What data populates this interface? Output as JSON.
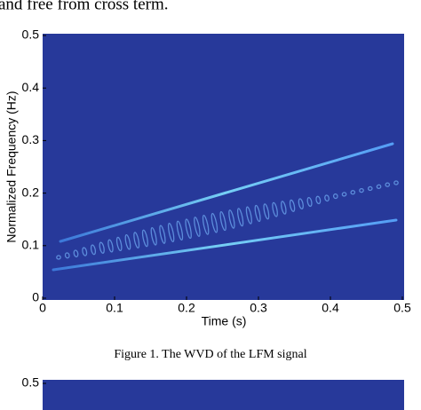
{
  "paragraph": "and free from cross term.",
  "chart_data": [
    {
      "type": "heatmap",
      "xlabel": "Time (s)",
      "ylabel": "Normalized Frequency (Hz)",
      "xlim": [
        0,
        0.5
      ],
      "ylim": [
        0,
        0.5
      ],
      "xticks": [
        0,
        0.1,
        0.2,
        0.3,
        0.4,
        0.5
      ],
      "yticks": [
        0,
        0.1,
        0.2,
        0.3,
        0.4,
        0.5
      ]
    },
    {
      "type": "heatmap",
      "yticks": [
        0.5
      ]
    }
  ],
  "caption": "Figure 1. The WVD of the LFM signal"
}
